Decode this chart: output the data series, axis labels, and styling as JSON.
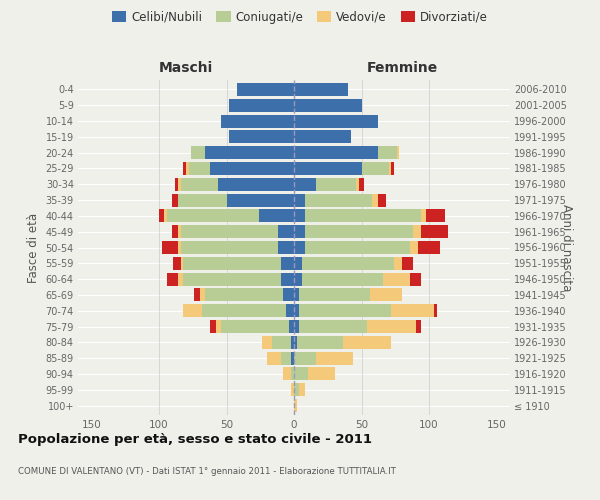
{
  "age_groups": [
    "100+",
    "95-99",
    "90-94",
    "85-89",
    "80-84",
    "75-79",
    "70-74",
    "65-69",
    "60-64",
    "55-59",
    "50-54",
    "45-49",
    "40-44",
    "35-39",
    "30-34",
    "25-29",
    "20-24",
    "15-19",
    "10-14",
    "5-9",
    "0-4"
  ],
  "birth_years": [
    "≤ 1910",
    "1911-1915",
    "1916-1920",
    "1921-1925",
    "1926-1930",
    "1931-1935",
    "1936-1940",
    "1941-1945",
    "1946-1950",
    "1951-1955",
    "1956-1960",
    "1961-1965",
    "1966-1970",
    "1971-1975",
    "1976-1980",
    "1981-1985",
    "1986-1990",
    "1991-1995",
    "1996-2000",
    "2001-2005",
    "2006-2010"
  ],
  "colors": {
    "celibe": "#3d6faa",
    "coniugato": "#b8cc96",
    "vedovo": "#f5c97a",
    "divorziato": "#cc2222"
  },
  "maschi": {
    "celibe": [
      0,
      0,
      0,
      2,
      2,
      4,
      6,
      8,
      10,
      10,
      12,
      12,
      26,
      50,
      56,
      62,
      66,
      48,
      54,
      48,
      42
    ],
    "coniugato": [
      0,
      0,
      2,
      8,
      14,
      50,
      62,
      58,
      72,
      72,
      72,
      72,
      68,
      36,
      28,
      16,
      10,
      0,
      0,
      0,
      0
    ],
    "vedovo": [
      0,
      2,
      6,
      10,
      8,
      4,
      14,
      4,
      4,
      2,
      2,
      2,
      2,
      0,
      2,
      2,
      0,
      0,
      0,
      0,
      0
    ],
    "divorziato": [
      0,
      0,
      0,
      0,
      0,
      4,
      0,
      4,
      8,
      6,
      12,
      4,
      4,
      4,
      2,
      2,
      0,
      0,
      0,
      0,
      0
    ]
  },
  "femmine": {
    "nubile": [
      0,
      0,
      0,
      0,
      2,
      4,
      4,
      4,
      6,
      6,
      8,
      8,
      8,
      8,
      16,
      50,
      62,
      42,
      62,
      50,
      40
    ],
    "coniugata": [
      0,
      4,
      10,
      16,
      34,
      50,
      68,
      52,
      60,
      68,
      78,
      80,
      86,
      50,
      30,
      20,
      14,
      0,
      0,
      0,
      0
    ],
    "vedova": [
      2,
      4,
      20,
      28,
      36,
      36,
      32,
      24,
      20,
      6,
      6,
      6,
      4,
      4,
      2,
      2,
      2,
      0,
      0,
      0,
      0
    ],
    "divorziata": [
      0,
      0,
      0,
      0,
      0,
      4,
      2,
      0,
      8,
      8,
      16,
      20,
      14,
      6,
      4,
      2,
      0,
      0,
      0,
      0,
      0
    ]
  },
  "title": "Popolazione per età, sesso e stato civile - 2011",
  "subtitle": "COMUNE DI VALENTANO (VT) - Dati ISTAT 1° gennaio 2011 - Elaborazione TUTTITALIA.IT",
  "xlabel_left": "Maschi",
  "xlabel_right": "Femmine",
  "ylabel_left": "Fasce di età",
  "ylabel_right": "Anni di nascita",
  "xlim": 160,
  "background_color": "#f0f0eb",
  "legend_labels": [
    "Celibi/Nubili",
    "Coniugati/e",
    "Vedovi/e",
    "Divorziati/e"
  ]
}
